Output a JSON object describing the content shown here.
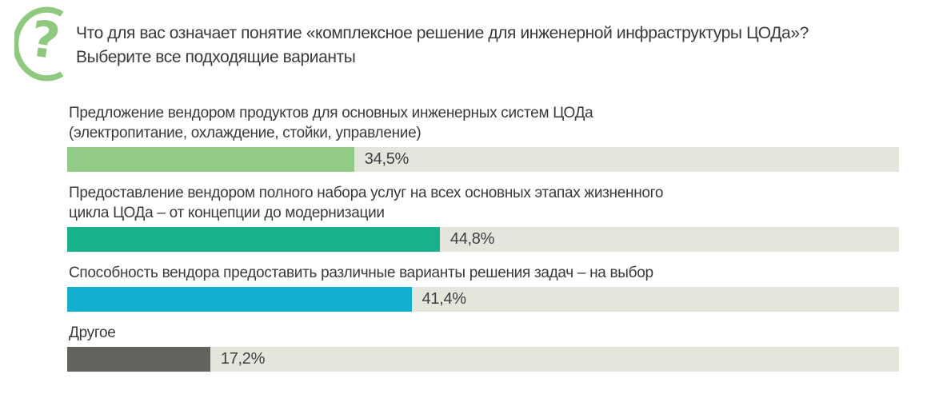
{
  "header": {
    "question_lines": [
      "Что для вас означает понятие «комплексное решение для инженерной инфраструктуры ЦОДа»?",
      "Выберите все подходящие варианты"
    ],
    "icon": "question-mark-icon"
  },
  "colors": {
    "icon_green": "#8fc97f",
    "track": "#e6e5dc",
    "text": "#3a3a39",
    "value_text": "#3e3e43"
  },
  "chart_data": {
    "type": "bar",
    "orientation": "horizontal",
    "title": "Что для вас означает понятие «комплексное решение для инженерной инфраструктуры ЦОДа»? Выберите все подходящие варианты",
    "categories": [
      "Предложение вендором продуктов для основных инженерных систем ЦОДа (электропитание, охлаждение, стойки, управление)",
      "Предоставление вендором полного набора услуг на всех основных этапах жизненного цикла ЦОДа – от концепции до модернизации",
      "Способность вендора предоставить различные варианты решения задач – на выбор",
      "Другое"
    ],
    "category_lines": [
      [
        "Предложение вендором продуктов для основных инженерных систем ЦОДа",
        "(электропитание, охлаждение, стойки, управление)"
      ],
      [
        "Предоставление вендором полного набора услуг на всех основных этапах жизненного",
        "цикла ЦОДа – от концепции до модернизации"
      ],
      [
        "Способность вендора предоставить различные варианты решения задач – на выбор"
      ],
      [
        "Другое"
      ]
    ],
    "values": [
      34.5,
      44.8,
      41.4,
      17.2
    ],
    "value_labels": [
      "34,5%",
      "44,8%",
      "41,4%",
      "17,2%"
    ],
    "bar_colors": [
      "#92cb85",
      "#17b28c",
      "#13afd1",
      "#63635e"
    ],
    "track_color": "#e6e5dc",
    "xlim": [
      0,
      100
    ],
    "grid": false,
    "legend": false
  }
}
